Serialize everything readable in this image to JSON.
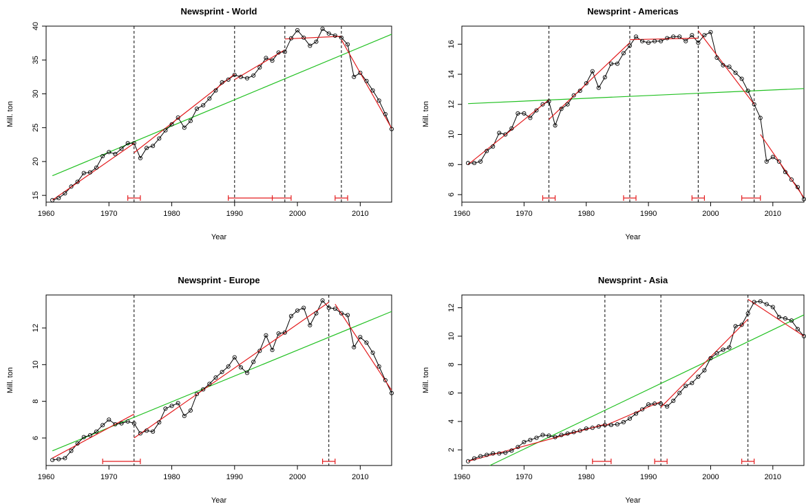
{
  "chart_data": [
    {
      "type": "line",
      "title": "Newsprint - World",
      "xlabel": "Year",
      "ylabel": "Mill. ton",
      "xlim": [
        1960,
        2015
      ],
      "ylim": [
        14,
        40
      ],
      "xticks": [
        1960,
        1970,
        1980,
        1990,
        2000,
        2010
      ],
      "yticks": [
        15,
        20,
        25,
        30,
        35,
        40
      ],
      "series": [
        {
          "x": [
            1961,
            1962,
            1963,
            1964,
            1965,
            1966,
            1967,
            1968,
            1969,
            1970,
            1971,
            1972,
            1973,
            1974,
            1975,
            1976,
            1977,
            1978,
            1979,
            1980,
            1981,
            1982,
            1983,
            1984,
            1985,
            1986,
            1987,
            1988,
            1989,
            1990,
            1991,
            1992,
            1993,
            1994,
            1995,
            1996,
            1997,
            1998,
            1999,
            2000,
            2001,
            2002,
            2003,
            2004,
            2005,
            2006,
            2007,
            2008,
            2009,
            2010,
            2011,
            2012,
            2013,
            2014,
            2015
          ],
          "values": [
            14.3,
            14.6,
            15.3,
            16.3,
            17.0,
            18.3,
            18.4,
            19.1,
            20.8,
            21.4,
            21.1,
            21.9,
            22.7,
            22.7,
            20.5,
            22.0,
            22.3,
            23.4,
            24.6,
            25.5,
            26.5,
            25.0,
            26.0,
            27.8,
            28.3,
            29.3,
            30.5,
            31.7,
            32.1,
            32.8,
            32.5,
            32.3,
            32.7,
            33.9,
            35.3,
            34.9,
            36.1,
            36.2,
            38.2,
            39.4,
            38.3,
            37.1,
            37.7,
            39.6,
            38.9,
            38.6,
            38.3,
            37.3,
            32.5,
            33.1,
            31.9,
            30.5,
            29.0,
            27.0,
            24.8
          ]
        }
      ],
      "fit_segments": [
        {
          "x": [
            1961,
            1974
          ],
          "values": [
            14.3,
            22.7
          ]
        },
        {
          "x": [
            1974,
            1990
          ],
          "values": [
            21.3,
            32.9
          ]
        },
        {
          "x": [
            1990,
            1998
          ],
          "values": [
            32.1,
            36.5
          ]
        },
        {
          "x": [
            1998,
            2007
          ],
          "values": [
            38.1,
            38.5
          ]
        },
        {
          "x": [
            2007,
            2015
          ],
          "values": [
            38.0,
            24.9
          ]
        }
      ],
      "linear_fit": {
        "x": [
          1961,
          2015
        ],
        "values": [
          17.9,
          38.8
        ]
      },
      "breakpoints": [
        1974,
        1990,
        1998,
        2007
      ],
      "confidence_intervals": [
        [
          1973,
          1975
        ],
        [
          1989,
          1999
        ],
        [
          2006,
          2008
        ]
      ],
      "ci_marks": [
        1996
      ]
    },
    {
      "type": "line",
      "title": "Newsprint - Americas",
      "xlabel": "Year",
      "ylabel": "Mill. ton",
      "xlim": [
        1960,
        2015
      ],
      "ylim": [
        5.5,
        17.2
      ],
      "xticks": [
        1960,
        1970,
        1980,
        1990,
        2000,
        2010
      ],
      "yticks": [
        6,
        8,
        10,
        12,
        14,
        16
      ],
      "series": [
        {
          "x": [
            1961,
            1962,
            1963,
            1964,
            1965,
            1966,
            1967,
            1968,
            1969,
            1970,
            1971,
            1972,
            1973,
            1974,
            1975,
            1976,
            1977,
            1978,
            1979,
            1980,
            1981,
            1982,
            1983,
            1984,
            1985,
            1986,
            1987,
            1988,
            1989,
            1990,
            1991,
            1992,
            1993,
            1994,
            1995,
            1996,
            1997,
            1998,
            1999,
            2000,
            2001,
            2002,
            2003,
            2004,
            2005,
            2006,
            2007,
            2008,
            2009,
            2010,
            2011,
            2012,
            2013,
            2014,
            2015
          ],
          "values": [
            8.1,
            8.1,
            8.2,
            8.9,
            9.2,
            10.1,
            10.0,
            10.4,
            11.4,
            11.4,
            11.1,
            11.6,
            12.0,
            12.2,
            10.6,
            11.7,
            12.0,
            12.6,
            12.9,
            13.4,
            14.2,
            13.1,
            13.8,
            14.7,
            14.7,
            15.4,
            15.9,
            16.5,
            16.2,
            16.1,
            16.2,
            16.2,
            16.4,
            16.5,
            16.5,
            16.2,
            16.6,
            16.1,
            16.6,
            16.8,
            15.1,
            14.6,
            14.5,
            14.1,
            13.7,
            12.9,
            12.0,
            11.1,
            8.2,
            8.5,
            8.2,
            7.5,
            7.0,
            6.5,
            5.7
          ]
        }
      ],
      "fit_segments": [
        {
          "x": [
            1961,
            1974
          ],
          "values": [
            8.0,
            12.3
          ]
        },
        {
          "x": [
            1974,
            1987
          ],
          "values": [
            11.0,
            16.1
          ]
        },
        {
          "x": [
            1987,
            1998
          ],
          "values": [
            16.3,
            16.4
          ]
        },
        {
          "x": [
            1998,
            2007
          ],
          "values": [
            16.9,
            12.0
          ]
        },
        {
          "x": [
            2008,
            2015
          ],
          "values": [
            10.0,
            5.8
          ]
        }
      ],
      "linear_fit": {
        "x": [
          1961,
          2015
        ],
        "values": [
          12.05,
          13.05
        ]
      },
      "breakpoints": [
        1974,
        1987,
        1998,
        2007
      ],
      "confidence_intervals": [
        [
          1973,
          1975
        ],
        [
          1986,
          1988
        ],
        [
          1997,
          1999
        ],
        [
          2005,
          2008
        ]
      ],
      "ci_marks": []
    },
    {
      "type": "line",
      "title": "Newsprint - Europe",
      "xlabel": "Year",
      "ylabel": "Mill. ton",
      "xlim": [
        1960,
        2015
      ],
      "ylim": [
        4.5,
        13.8
      ],
      "xticks": [
        1960,
        1970,
        1980,
        1990,
        2000,
        2010
      ],
      "yticks": [
        6,
        8,
        10,
        12
      ],
      "series": [
        {
          "x": [
            1961,
            1962,
            1963,
            1964,
            1965,
            1966,
            1967,
            1968,
            1969,
            1970,
            1971,
            1972,
            1973,
            1974,
            1975,
            1976,
            1977,
            1978,
            1979,
            1980,
            1981,
            1982,
            1983,
            1984,
            1985,
            1986,
            1987,
            1988,
            1989,
            1990,
            1991,
            1992,
            1993,
            1994,
            1995,
            1996,
            1997,
            1998,
            1999,
            2000,
            2001,
            2002,
            2003,
            2004,
            2005,
            2006,
            2007,
            2008,
            2009,
            2010,
            2011,
            2012,
            2013,
            2014,
            2015
          ],
          "values": [
            4.8,
            4.85,
            4.9,
            5.3,
            5.7,
            6.05,
            6.15,
            6.35,
            6.7,
            7.0,
            6.75,
            6.8,
            6.9,
            6.8,
            6.25,
            6.4,
            6.35,
            6.85,
            7.6,
            7.75,
            7.9,
            7.2,
            7.5,
            8.4,
            8.65,
            8.95,
            9.3,
            9.6,
            9.9,
            10.4,
            9.85,
            9.55,
            10.15,
            10.75,
            11.6,
            10.8,
            11.7,
            11.75,
            12.65,
            12.95,
            13.1,
            12.15,
            12.8,
            13.5,
            13.1,
            13.05,
            12.8,
            12.7,
            10.95,
            11.5,
            11.2,
            10.65,
            9.9,
            9.15,
            8.45
          ]
        }
      ],
      "fit_segments": [
        {
          "x": [
            1961,
            1974
          ],
          "values": [
            4.9,
            7.3
          ]
        },
        {
          "x": [
            1974,
            2005
          ],
          "values": [
            6.0,
            13.4
          ]
        },
        {
          "x": [
            2006,
            2015
          ],
          "values": [
            13.3,
            8.6
          ]
        }
      ],
      "linear_fit": {
        "x": [
          1961,
          2015
        ],
        "values": [
          5.3,
          12.9
        ]
      },
      "breakpoints": [
        1974,
        2005
      ],
      "confidence_intervals": [
        [
          1969,
          1975
        ],
        [
          2004,
          2006
        ]
      ],
      "ci_marks": []
    },
    {
      "type": "line",
      "title": "Newsprint - Asia",
      "xlabel": "Year",
      "ylabel": "Mill. ton",
      "xlim": [
        1960,
        2015
      ],
      "ylim": [
        0.9,
        12.9
      ],
      "xticks": [
        1960,
        1970,
        1980,
        1990,
        2000,
        2010
      ],
      "yticks": [
        2,
        4,
        6,
        8,
        10,
        12
      ],
      "series": [
        {
          "x": [
            1961,
            1962,
            1963,
            1964,
            1965,
            1966,
            1967,
            1968,
            1969,
            1970,
            1971,
            1972,
            1973,
            1974,
            1975,
            1976,
            1977,
            1978,
            1979,
            1980,
            1981,
            1982,
            1983,
            1984,
            1985,
            1986,
            1987,
            1988,
            1989,
            1990,
            1991,
            1992,
            1993,
            1994,
            1995,
            1996,
            1997,
            1998,
            1999,
            2000,
            2001,
            2002,
            2003,
            2004,
            2005,
            2006,
            2007,
            2008,
            2009,
            2010,
            2011,
            2012,
            2013,
            2014,
            2015
          ],
          "values": [
            1.2,
            1.4,
            1.55,
            1.65,
            1.75,
            1.75,
            1.8,
            1.95,
            2.2,
            2.55,
            2.7,
            2.85,
            3.05,
            3.0,
            2.9,
            3.05,
            3.15,
            3.25,
            3.35,
            3.5,
            3.55,
            3.65,
            3.75,
            3.75,
            3.8,
            3.95,
            4.2,
            4.55,
            4.85,
            5.2,
            5.25,
            5.25,
            5.05,
            5.45,
            6.0,
            6.5,
            6.7,
            7.15,
            7.6,
            8.45,
            8.8,
            9.05,
            9.2,
            10.7,
            10.8,
            11.6,
            12.4,
            12.45,
            12.25,
            12.05,
            11.35,
            11.25,
            11.1,
            10.5,
            10.0
          ]
        }
      ],
      "fit_segments": [
        {
          "x": [
            1961,
            1983
          ],
          "values": [
            1.2,
            3.8
          ]
        },
        {
          "x": [
            1983,
            1992
          ],
          "values": [
            3.7,
            5.4
          ]
        },
        {
          "x": [
            1992,
            2006
          ],
          "values": [
            5.0,
            11.2
          ]
        },
        {
          "x": [
            2006,
            2015
          ],
          "values": [
            12.6,
            10.0
          ]
        }
      ],
      "linear_fit": {
        "x": [
          1964.5,
          2015
        ],
        "values": [
          0.9,
          11.5
        ]
      },
      "breakpoints": [
        1983,
        1992,
        2006
      ],
      "confidence_intervals": [
        [
          1981,
          1984
        ],
        [
          1991,
          1993
        ],
        [
          2005,
          2007
        ]
      ],
      "ci_marks": []
    }
  ]
}
